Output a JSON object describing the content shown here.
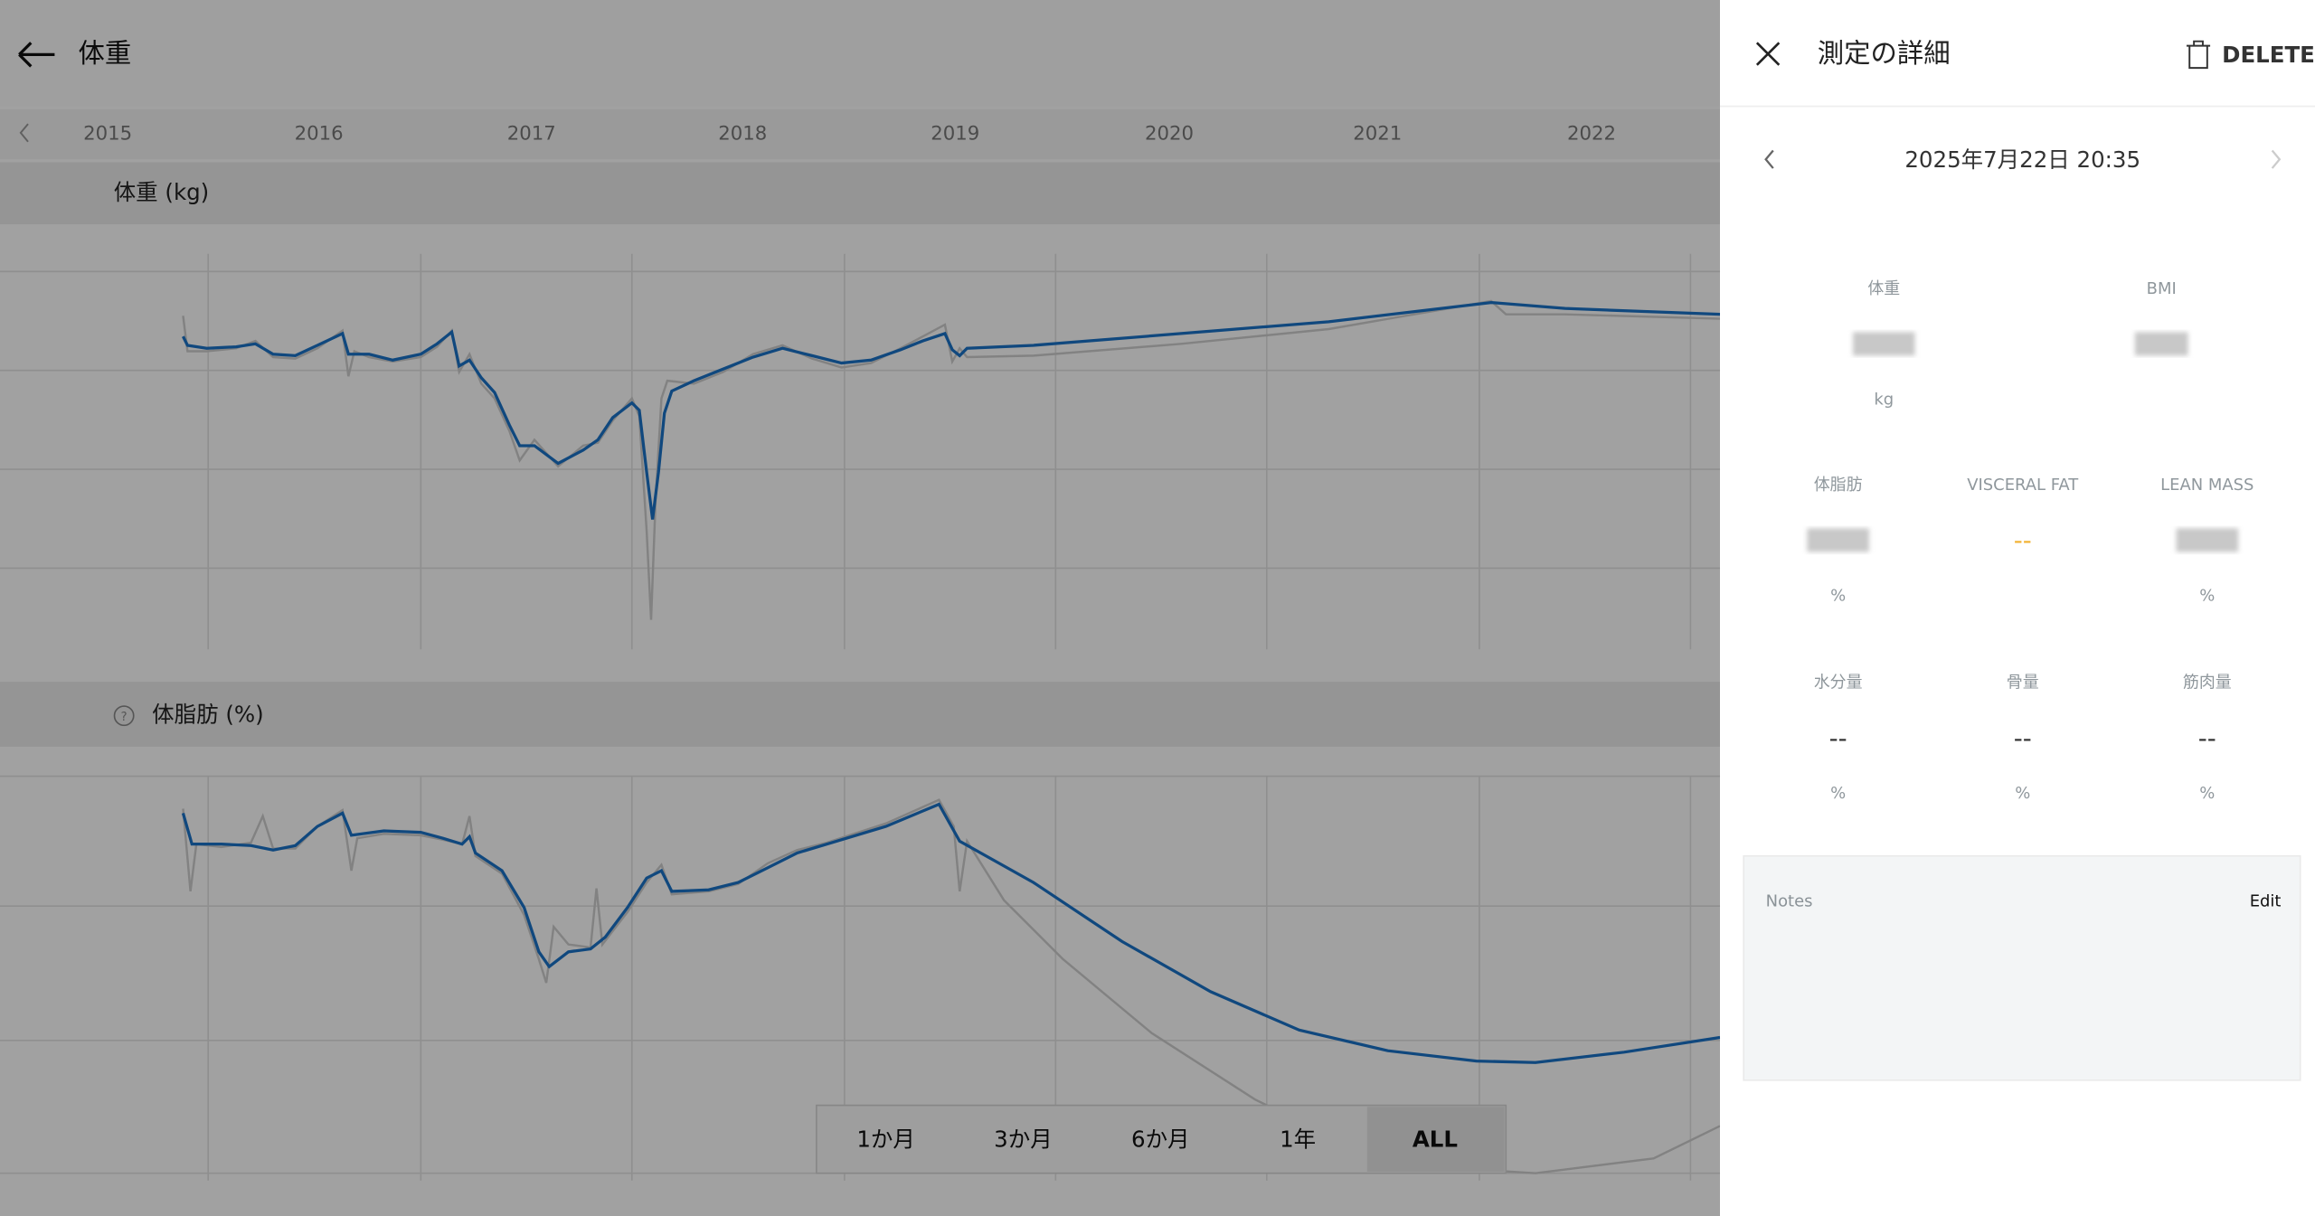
{
  "header": {
    "title": "体重"
  },
  "timeline": {
    "years": [
      "2015",
      "2016",
      "2017",
      "2018",
      "2019",
      "2020",
      "2021",
      "2022"
    ]
  },
  "charts": [
    {
      "title": "体重 (kg)"
    },
    {
      "title": "体脂肪 (%)"
    }
  ],
  "range_buttons": [
    "1か月",
    "3か月",
    "6か月",
    "1年",
    "ALL"
  ],
  "panel": {
    "title": "測定の詳細",
    "delete": "DELETE",
    "date": "2025年7月22日 20:35",
    "metrics": [
      {
        "label": "体重",
        "unit": "kg"
      },
      {
        "label": "BMI"
      },
      {
        "label": "体脂肪",
        "unit": "%"
      },
      {
        "label": "VISCERAL FAT",
        "value": "--"
      },
      {
        "label": "LEAN MASS",
        "unit": "%"
      },
      {
        "label": "水分量",
        "value": "--",
        "unit": "%"
      },
      {
        "label": "骨量",
        "value": "--",
        "unit": "%"
      },
      {
        "label": "筋肉量",
        "value": "--",
        "unit": "%"
      }
    ],
    "notes": {
      "label": "Notes",
      "edit": "Edit"
    }
  }
}
